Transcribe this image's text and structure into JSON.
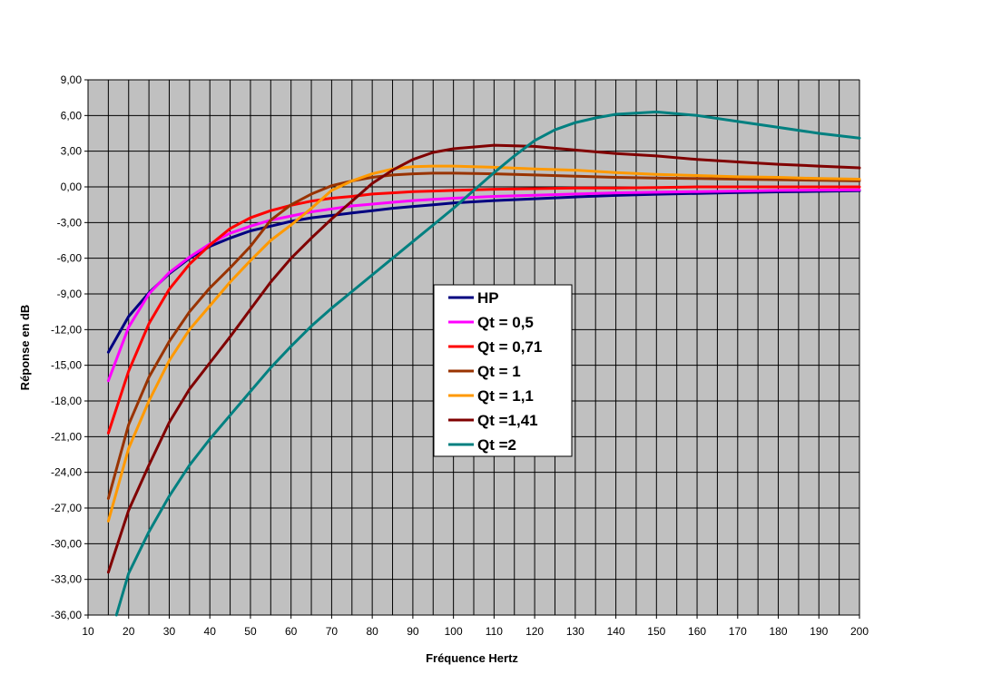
{
  "chart_data": {
    "type": "line",
    "title": "",
    "xlabel": "Fréquence Hertz",
    "ylabel": "Réponse en dB",
    "xlim": [
      10,
      200
    ],
    "ylim": [
      -36,
      9
    ],
    "x_ticks": [
      "10",
      "20",
      "30",
      "40",
      "50",
      "60",
      "70",
      "80",
      "90",
      "100",
      "110",
      "120",
      "130",
      "140",
      "150",
      "160",
      "170",
      "180",
      "190",
      "200"
    ],
    "y_ticks": [
      "9,00",
      "6,00",
      "3,00",
      "0,00",
      "-3,00",
      "-6,00",
      "-9,00",
      "-12,00",
      "-15,00",
      "-18,00",
      "-21,00",
      "-24,00",
      "-27,00",
      "-30,00",
      "-33,00",
      "-36,00"
    ],
    "grid": true,
    "plot_background": "#c0c0c0",
    "legend_position": "center",
    "series": [
      {
        "name": "HP",
        "color": "#000080",
        "x": [
          15,
          20,
          25,
          30,
          35,
          40,
          45,
          50,
          55,
          60,
          65,
          70,
          75,
          80,
          85,
          90,
          95,
          100,
          110,
          120,
          130,
          140,
          150,
          160,
          170,
          180,
          190,
          200
        ],
        "y": [
          -13.9,
          -10.9,
          -8.9,
          -7.3,
          -6.0,
          -5.0,
          -4.3,
          -3.7,
          -3.3,
          -2.9,
          -2.6,
          -2.4,
          -2.2,
          -2.0,
          -1.8,
          -1.65,
          -1.5,
          -1.35,
          -1.15,
          -1.0,
          -0.85,
          -0.72,
          -0.62,
          -0.55,
          -0.48,
          -0.42,
          -0.37,
          -0.33
        ]
      },
      {
        "name": "Qt = 0,5",
        "color": "#ff00ff",
        "x": [
          15,
          20,
          25,
          30,
          35,
          40,
          45,
          50,
          55,
          60,
          65,
          70,
          75,
          80,
          85,
          90,
          95,
          100,
          110,
          120,
          130,
          140,
          150,
          160,
          170,
          180,
          190,
          200
        ],
        "y": [
          -16.3,
          -11.8,
          -9.0,
          -7.2,
          -5.9,
          -4.8,
          -3.9,
          -3.3,
          -2.8,
          -2.45,
          -2.1,
          -1.85,
          -1.6,
          -1.45,
          -1.3,
          -1.15,
          -1.05,
          -0.95,
          -0.8,
          -0.7,
          -0.6,
          -0.5,
          -0.45,
          -0.4,
          -0.35,
          -0.3,
          -0.27,
          -0.25
        ]
      },
      {
        "name": "Qt = 0,71",
        "color": "#ff0000",
        "x": [
          15,
          20,
          25,
          30,
          35,
          40,
          45,
          50,
          55,
          60,
          65,
          70,
          75,
          80,
          85,
          90,
          95,
          100,
          110,
          120,
          130,
          140,
          150,
          160,
          170,
          180,
          190,
          200
        ],
        "y": [
          -20.7,
          -15.5,
          -11.5,
          -8.6,
          -6.5,
          -4.9,
          -3.5,
          -2.6,
          -2.0,
          -1.55,
          -1.2,
          -0.95,
          -0.8,
          -0.6,
          -0.5,
          -0.4,
          -0.35,
          -0.3,
          -0.2,
          -0.15,
          -0.1,
          -0.1,
          -0.05,
          0.0,
          0.0,
          0.0,
          0.0,
          0.0
        ]
      },
      {
        "name": "Qt = 1",
        "color": "#993300",
        "x": [
          15,
          20,
          25,
          30,
          35,
          40,
          45,
          50,
          55,
          60,
          65,
          70,
          75,
          80,
          85,
          90,
          95,
          100,
          110,
          120,
          130,
          140,
          150,
          160,
          170,
          180,
          190,
          200
        ],
        "y": [
          -26.2,
          -20.0,
          -16.0,
          -13.0,
          -10.5,
          -8.5,
          -6.8,
          -5.0,
          -2.8,
          -1.5,
          -0.6,
          0.1,
          0.5,
          0.8,
          1.0,
          1.1,
          1.15,
          1.15,
          1.1,
          1.0,
          0.9,
          0.8,
          0.75,
          0.7,
          0.65,
          0.6,
          0.55,
          0.5
        ]
      },
      {
        "name": "Qt = 1,1",
        "color": "#ff9900",
        "x": [
          15,
          20,
          25,
          30,
          35,
          40,
          45,
          50,
          55,
          60,
          65,
          70,
          75,
          80,
          85,
          90,
          95,
          100,
          110,
          120,
          130,
          140,
          150,
          160,
          170,
          180,
          190,
          200
        ],
        "y": [
          -28.1,
          -22.0,
          -18.0,
          -14.6,
          -12.0,
          -10.0,
          -8.0,
          -6.2,
          -4.5,
          -3.2,
          -1.8,
          -0.3,
          0.5,
          1.1,
          1.5,
          1.7,
          1.75,
          1.75,
          1.65,
          1.5,
          1.4,
          1.2,
          1.05,
          0.95,
          0.85,
          0.8,
          0.7,
          0.65
        ]
      },
      {
        "name": "Qt =1,41",
        "color": "#800000",
        "x": [
          15,
          20,
          25,
          30,
          35,
          40,
          45,
          50,
          55,
          60,
          65,
          70,
          75,
          80,
          85,
          90,
          95,
          100,
          110,
          120,
          130,
          140,
          150,
          160,
          170,
          180,
          190,
          200
        ],
        "y": [
          -32.4,
          -27.2,
          -23.4,
          -19.8,
          -17.0,
          -14.8,
          -12.6,
          -10.3,
          -8.0,
          -6.0,
          -4.3,
          -2.7,
          -1.2,
          0.3,
          1.4,
          2.3,
          2.9,
          3.2,
          3.5,
          3.4,
          3.1,
          2.8,
          2.6,
          2.3,
          2.1,
          1.9,
          1.75,
          1.6
        ]
      },
      {
        "name": "Qt =2",
        "color": "#008080",
        "x": [
          17,
          20,
          25,
          30,
          35,
          40,
          45,
          50,
          55,
          60,
          65,
          70,
          75,
          80,
          85,
          90,
          95,
          100,
          105,
          110,
          115,
          120,
          125,
          130,
          135,
          140,
          150,
          160,
          170,
          180,
          190,
          200
        ],
        "y": [
          -36.0,
          -32.5,
          -29.0,
          -26.0,
          -23.4,
          -21.2,
          -19.2,
          -17.2,
          -15.2,
          -13.4,
          -11.7,
          -10.2,
          -8.8,
          -7.4,
          -6.0,
          -4.6,
          -3.2,
          -1.8,
          -0.3,
          1.2,
          2.6,
          3.9,
          4.8,
          5.4,
          5.8,
          6.1,
          6.3,
          6.0,
          5.5,
          5.0,
          4.5,
          4.1
        ]
      }
    ]
  }
}
